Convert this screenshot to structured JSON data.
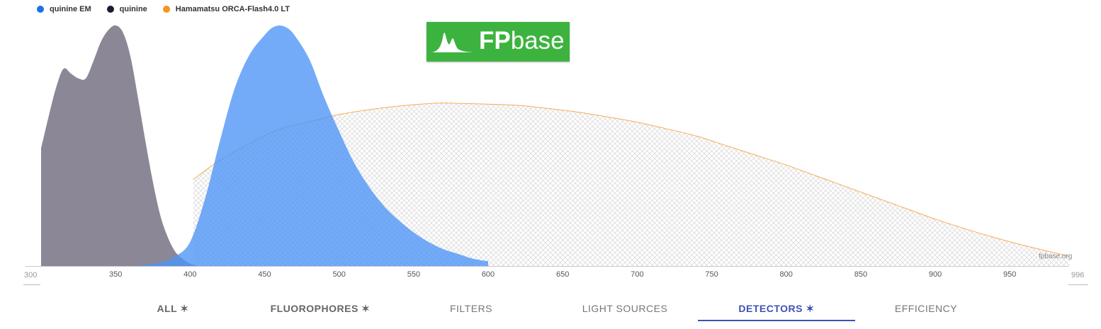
{
  "legend": [
    {
      "label": "quinine EM",
      "color": "#1a73e8"
    },
    {
      "label": "quinine",
      "color": "#1e1a33"
    },
    {
      "label": "Hamamatsu ORCA-Flash4.0 LT",
      "color": "#f7931e"
    }
  ],
  "logo": {
    "text_bold": "FP",
    "text_light": "base"
  },
  "watermark": "fpbase.org",
  "chart_data": {
    "type": "area",
    "title": "",
    "xlabel": "",
    "ylabel": "",
    "xlim": [
      300,
      996
    ],
    "ylim": [
      0,
      1
    ],
    "x_ticks": [
      350,
      400,
      450,
      500,
      550,
      600,
      650,
      700,
      750,
      800,
      850,
      900,
      950
    ],
    "x_min_label": "300",
    "x_max_label": "996",
    "grid": false,
    "legend_position": "top-left",
    "series": [
      {
        "name": "quinine",
        "style": "filled",
        "color": "#5f596f",
        "points": [
          [
            300,
            0.49
          ],
          [
            305,
            0.62
          ],
          [
            310,
            0.74
          ],
          [
            315,
            0.82
          ],
          [
            320,
            0.8
          ],
          [
            325,
            0.78
          ],
          [
            330,
            0.78
          ],
          [
            335,
            0.85
          ],
          [
            340,
            0.93
          ],
          [
            345,
            0.98
          ],
          [
            350,
            1.0
          ],
          [
            355,
            0.97
          ],
          [
            360,
            0.87
          ],
          [
            365,
            0.7
          ],
          [
            370,
            0.52
          ],
          [
            375,
            0.35
          ],
          [
            380,
            0.21
          ],
          [
            385,
            0.12
          ],
          [
            390,
            0.06
          ],
          [
            395,
            0.03
          ],
          [
            400,
            0.01
          ],
          [
            405,
            0.0
          ]
        ]
      },
      {
        "name": "quinine EM",
        "style": "filled",
        "color": "#4d94f7",
        "points": [
          [
            364,
            0.0
          ],
          [
            380,
            0.015
          ],
          [
            390,
            0.04
          ],
          [
            400,
            0.1
          ],
          [
            410,
            0.28
          ],
          [
            420,
            0.52
          ],
          [
            430,
            0.74
          ],
          [
            440,
            0.88
          ],
          [
            450,
            0.96
          ],
          [
            455,
            0.99
          ],
          [
            460,
            1.0
          ],
          [
            465,
            0.99
          ],
          [
            470,
            0.96
          ],
          [
            480,
            0.86
          ],
          [
            490,
            0.7
          ],
          [
            500,
            0.56
          ],
          [
            510,
            0.43
          ],
          [
            520,
            0.33
          ],
          [
            530,
            0.25
          ],
          [
            540,
            0.19
          ],
          [
            550,
            0.14
          ],
          [
            560,
            0.1
          ],
          [
            570,
            0.07
          ],
          [
            580,
            0.05
          ],
          [
            590,
            0.03
          ],
          [
            600,
            0.02
          ]
        ]
      },
      {
        "name": "Hamamatsu ORCA-Flash4.0 LT",
        "style": "hatched",
        "color": "#f7931e",
        "points": [
          [
            402,
            0.36
          ],
          [
            420,
            0.44
          ],
          [
            440,
            0.51
          ],
          [
            460,
            0.57
          ],
          [
            480,
            0.6
          ],
          [
            500,
            0.63
          ],
          [
            520,
            0.65
          ],
          [
            540,
            0.665
          ],
          [
            560,
            0.675
          ],
          [
            570,
            0.678
          ],
          [
            580,
            0.676
          ],
          [
            600,
            0.673
          ],
          [
            620,
            0.668
          ],
          [
            640,
            0.655
          ],
          [
            660,
            0.64
          ],
          [
            680,
            0.62
          ],
          [
            700,
            0.598
          ],
          [
            720,
            0.57
          ],
          [
            740,
            0.54
          ],
          [
            760,
            0.5
          ],
          [
            780,
            0.46
          ],
          [
            800,
            0.42
          ],
          [
            820,
            0.375
          ],
          [
            840,
            0.33
          ],
          [
            860,
            0.285
          ],
          [
            880,
            0.24
          ],
          [
            900,
            0.195
          ],
          [
            920,
            0.155
          ],
          [
            940,
            0.118
          ],
          [
            960,
            0.085
          ],
          [
            980,
            0.055
          ],
          [
            990,
            0.04
          ]
        ]
      }
    ]
  },
  "tabs": [
    {
      "label": "ALL ✶",
      "style": "bold"
    },
    {
      "label": "FLUOROPHORES ✶",
      "style": "bold"
    },
    {
      "label": "FILTERS",
      "style": ""
    },
    {
      "label": "LIGHT SOURCES",
      "style": ""
    },
    {
      "label": "DETECTORS ✶",
      "style": "active"
    },
    {
      "label": "EFFICIENCY",
      "style": ""
    }
  ]
}
